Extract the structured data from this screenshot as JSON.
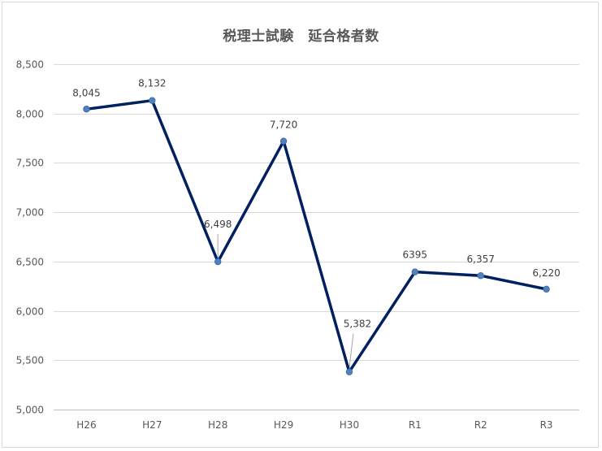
{
  "chart_data": {
    "type": "line",
    "title": "税理士試験　延合格者数",
    "categories": [
      "H26",
      "H27",
      "H28",
      "H29",
      "H30",
      "R1",
      "R2",
      "R3"
    ],
    "values": [
      8045,
      8132,
      6498,
      7720,
      5382,
      6395,
      6357,
      6220
    ],
    "data_labels": [
      "8,045",
      "8,132",
      "6,498",
      "7,720",
      "5,382",
      "6395",
      "6,357",
      "6,220"
    ],
    "ylim": [
      5000,
      8500
    ],
    "yticks": [
      5000,
      5500,
      6000,
      6500,
      7000,
      7500,
      8000,
      8500
    ],
    "ytick_labels": [
      "5,000",
      "5,500",
      "6,000",
      "6,500",
      "7,000",
      "7,500",
      "8,000",
      "8,500"
    ],
    "xlabel": "",
    "ylabel": "",
    "grid": true,
    "legend": "none",
    "line_color": "#002060",
    "marker_color": "#4f81bd"
  }
}
